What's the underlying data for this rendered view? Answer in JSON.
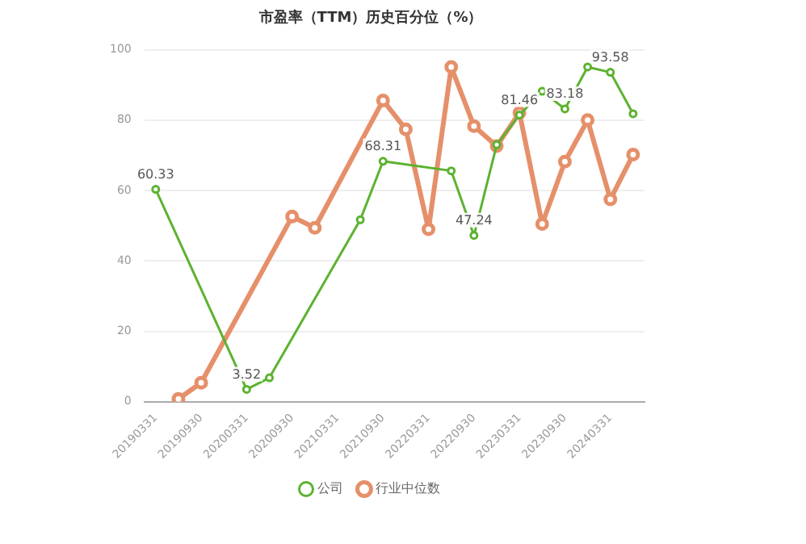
{
  "chart_data": {
    "type": "line",
    "title": "市盈率（TTM）历史百分位（%）",
    "categories": [
      "20190331",
      null,
      "20190930",
      null,
      "20200331",
      null,
      "20200930",
      null,
      "20210331",
      null,
      "20210930",
      null,
      "20220331",
      null,
      "20220930",
      null,
      "20230331",
      null,
      "20230930",
      null,
      "20240331",
      null
    ],
    "series": [
      {
        "name": "公司",
        "color": "#5cb230",
        "values": [
          60.33,
          null,
          null,
          null,
          3.52,
          6.8,
          null,
          null,
          null,
          51.7,
          68.31,
          null,
          null,
          65.6,
          47.24,
          73,
          81.46,
          88.2,
          83.18,
          95.1,
          93.58,
          81.8
        ],
        "value_labels": [
          "60.33",
          null,
          null,
          null,
          "3.52",
          null,
          null,
          null,
          null,
          null,
          "68.31",
          null,
          null,
          null,
          "47.24",
          null,
          "81.46",
          null,
          "83.18",
          null,
          "93.58",
          null
        ]
      },
      {
        "name": "行业中位数",
        "color": "#e5906a",
        "values": [
          null,
          0.8,
          5.4,
          null,
          null,
          null,
          52.6,
          49.4,
          null,
          null,
          85.6,
          77.4,
          49,
          95.1,
          78.3,
          72.6,
          82.1,
          50.5,
          68.2,
          80,
          57.5,
          70.2
        ]
      }
    ],
    "ylim": [
      0,
      100
    ],
    "yticks": [
      0,
      20,
      40,
      60,
      80,
      100
    ],
    "grid": "y",
    "legend": "bottom",
    "marker": "circle"
  }
}
